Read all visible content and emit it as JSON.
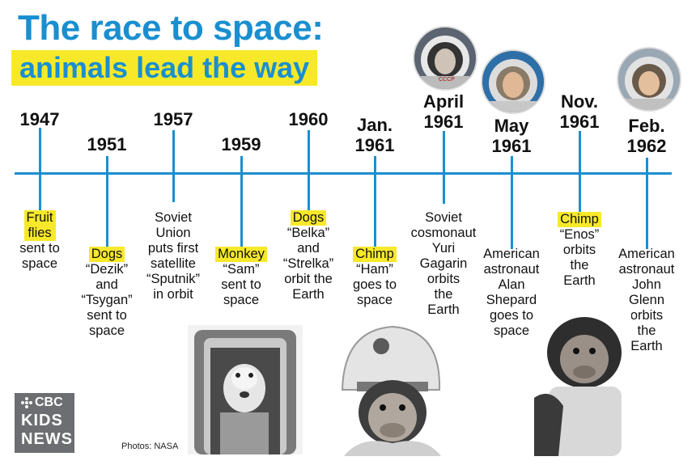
{
  "title": {
    "line1": "The race to space:",
    "line2": "animals lead the way"
  },
  "credit": "Photos: NASA",
  "logo": {
    "line1": "CBC",
    "line2": "KIDS",
    "line3": "NEWS"
  },
  "colors": {
    "accent": "#1a8fd0",
    "highlight": "#f7e92a",
    "logo_bg": "#6d6e71"
  },
  "timeline": [
    {
      "date": "1947",
      "label": "Fruit\nflies",
      "desc": "sent to\nspace"
    },
    {
      "date": "1951",
      "label": "Dogs",
      "desc": "“Dezik”\nand\n“Tsygan”\nsent to\nspace"
    },
    {
      "date": "1957",
      "label": "",
      "desc": "Soviet\nUnion\nputs first\nsatellite\n“Sputnik”\nin orbit"
    },
    {
      "date": "1959",
      "label": "Monkey",
      "desc": "“Sam”\nsent to\nspace"
    },
    {
      "date": "1960",
      "label": "Dogs",
      "desc": "“Belka”\nand\n“Strelka”\norbit the\nEarth"
    },
    {
      "date": "Jan.\n1961",
      "label": "Chimp",
      "desc": "“Ham”\ngoes to\nspace"
    },
    {
      "date": "April\n1961",
      "label": "",
      "desc": "Soviet\ncosmonaut\nYuri\nGagarin\norbits\nthe\nEarth"
    },
    {
      "date": "May\n1961",
      "label": "",
      "desc": "American\nastronaut\nAlan\nShepard\ngoes to\nspace"
    },
    {
      "date": "Nov.\n1961",
      "label": "Chimp",
      "desc": "“Enos”\norbits\nthe\nEarth"
    },
    {
      "date": "Feb.\n1962",
      "label": "",
      "desc": "American\nastronaut\nJohn\nGlenn\norbits\nthe\nEarth"
    }
  ]
}
